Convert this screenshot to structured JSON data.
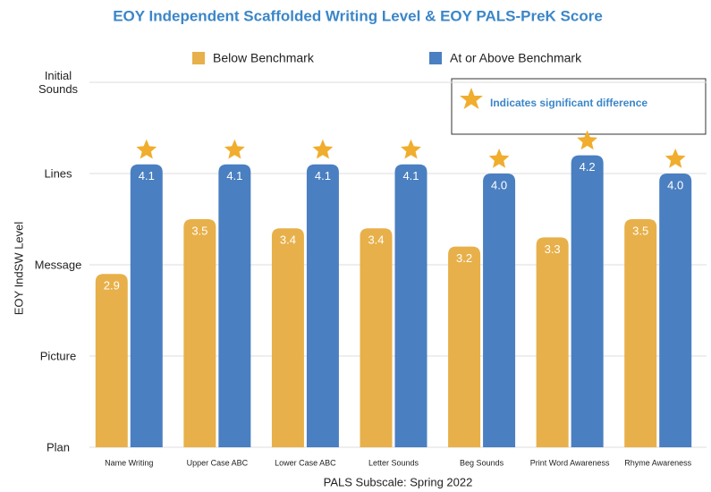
{
  "chart_data": {
    "type": "bar",
    "title": "EOY Independent Scaffolded Writing Level & EOY PALS-PreK Score",
    "x_label": "PALS Subscale: Spring 2022",
    "y_label": "EOY IndSW Level",
    "annotation": "Indicates significant difference",
    "categories": [
      "Name Writing",
      "Upper Case ABC",
      "Lower Case ABC",
      "Letter Sounds",
      "Beg Sounds",
      "Print Word Awareness",
      "Rhyme Awareness"
    ],
    "series": [
      {
        "name": "Below Benchmark",
        "color": "#e8b04a",
        "values": [
          2.9,
          3.5,
          3.4,
          3.4,
          3.2,
          3.3,
          3.5
        ],
        "value_labels": [
          "2.9",
          "3.5",
          "3.4",
          "3.4",
          "3.2",
          "3.3",
          "3.5"
        ]
      },
      {
        "name": "At or Above Benchmark",
        "color": "#4a7fc1",
        "values": [
          4.1,
          4.1,
          4.1,
          4.1,
          4.0,
          4.2,
          4.0
        ],
        "value_labels": [
          "4.1",
          "4.1",
          "4.1",
          "4.1",
          "4.0",
          "4.2",
          "4.0"
        ],
        "significant": [
          true,
          true,
          true,
          true,
          true,
          true,
          true
        ]
      }
    ],
    "ylim": [
      1,
      5
    ],
    "yticks": [
      {
        "value": 1,
        "label": "Plan"
      },
      {
        "value": 2,
        "label": "Picture"
      },
      {
        "value": 3,
        "label": "Message"
      },
      {
        "value": 4,
        "label": "Lines"
      },
      {
        "value": 5,
        "label": "Initial Sounds"
      }
    ],
    "grid": true,
    "star_color": "#f0ad2e"
  }
}
